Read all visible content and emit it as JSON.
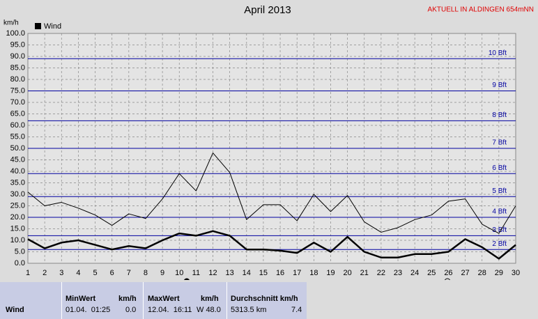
{
  "chart_data": {
    "type": "line",
    "title": "April 2013",
    "subtitle": "AKTUELL IN ALDINGEN 654mNN",
    "y_label": "km/h",
    "x": [
      1,
      2,
      3,
      4,
      5,
      6,
      7,
      8,
      9,
      10,
      11,
      12,
      13,
      14,
      15,
      16,
      17,
      18,
      19,
      20,
      21,
      22,
      23,
      24,
      25,
      26,
      27,
      28,
      29,
      30
    ],
    "xlim": [
      1,
      30
    ],
    "xticks": [
      1,
      2,
      3,
      4,
      5,
      6,
      7,
      8,
      9,
      10,
      11,
      12,
      13,
      14,
      15,
      16,
      17,
      18,
      19,
      20,
      21,
      22,
      23,
      24,
      25,
      26,
      27,
      28,
      29,
      30
    ],
    "ylim": [
      0,
      100
    ],
    "yticks": [
      {
        "value": 0,
        "label": "0.0"
      },
      {
        "value": 5,
        "label": "5.0"
      },
      {
        "value": 10,
        "label": "10.0"
      },
      {
        "value": 15,
        "label": "15.0"
      },
      {
        "value": 20,
        "label": "20.0"
      },
      {
        "value": 25,
        "label": "25.0"
      },
      {
        "value": 30,
        "label": "30.0"
      },
      {
        "value": 35,
        "label": "35.0"
      },
      {
        "value": 40,
        "label": "40.0"
      },
      {
        "value": 45,
        "label": "45.0"
      },
      {
        "value": 50,
        "label": "50.0"
      },
      {
        "value": 55,
        "label": "55.0"
      },
      {
        "value": 60,
        "label": "60.0"
      },
      {
        "value": 65,
        "label": "65.0"
      },
      {
        "value": 70,
        "label": "70.0"
      },
      {
        "value": 75,
        "label": "75.0"
      },
      {
        "value": 80,
        "label": "80.0"
      },
      {
        "value": 85,
        "label": "85.0"
      },
      {
        "value": 90,
        "label": "90.0"
      },
      {
        "value": 95,
        "label": "95.0"
      },
      {
        "value": 100,
        "label": "100.0"
      }
    ],
    "grid": true,
    "series": [
      {
        "name": "Wind",
        "color": "#000000",
        "width": 2.5,
        "values": [
          10.5,
          6.5,
          9,
          10,
          8,
          6,
          7.5,
          6.5,
          10,
          13,
          12,
          14,
          12,
          6,
          6,
          5.5,
          4.5,
          9,
          5,
          11.5,
          5,
          2.5,
          2.5,
          4,
          4,
          5,
          10.5,
          7,
          2,
          8
        ]
      },
      {
        "color": "#000000",
        "width": 1,
        "values": [
          31,
          25,
          26.5,
          24,
          21,
          16.5,
          21.5,
          19.5,
          28,
          39,
          31.5,
          48,
          39.5,
          19,
          25.5,
          25.5,
          18.5,
          30,
          22.5,
          29.5,
          18,
          13.5,
          15.5,
          19,
          21,
          27,
          28,
          17,
          13,
          25
        ]
      }
    ],
    "reference_lines": [
      {
        "value": 6,
        "label": "2 Bft"
      },
      {
        "value": 12,
        "label": "3 Bft"
      },
      {
        "value": 20,
        "label": "4 Bft"
      },
      {
        "value": 29,
        "label": "5 Bft"
      },
      {
        "value": 39,
        "label": "6 Bft"
      },
      {
        "value": 50,
        "label": "7 Bft"
      },
      {
        "value": 62,
        "label": "8 Bft"
      },
      {
        "value": 75,
        "label": "9 Bft"
      },
      {
        "value": 89,
        "label": "10 Bft"
      }
    ],
    "reference_color": "#0000a0"
  },
  "table": {
    "header": [
      "MinWert",
      "km/h",
      "MaxWert",
      "km/h",
      "Durchschnitt km/h"
    ],
    "rows": [
      [
        "Wind",
        "01.04.  01:25",
        "0.0",
        "12.04.  16:11",
        "W 48.0",
        "5313.5 km",
        "7.4"
      ]
    ]
  }
}
